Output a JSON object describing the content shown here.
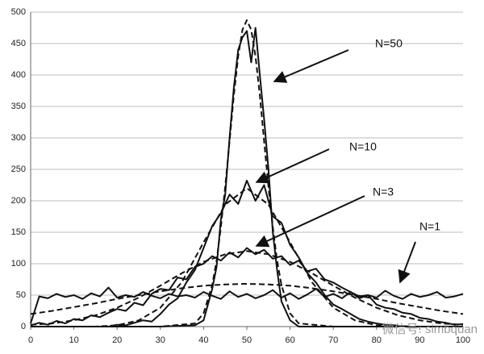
{
  "chart_data": {
    "type": "line",
    "xlim": [
      0,
      100
    ],
    "xticks": [
      0,
      10,
      20,
      30,
      40,
      50,
      60,
      70,
      80,
      90,
      100
    ],
    "ylim": [
      0,
      500
    ],
    "yticks": [
      0,
      50,
      100,
      150,
      200,
      250,
      300,
      350,
      400,
      450,
      500
    ],
    "grid": true,
    "series": [
      {
        "color": "#111111",
        "style": "solid",
        "x": [
          0,
          2,
          4,
          6,
          8,
          10,
          12,
          14,
          16,
          18,
          20,
          22,
          24,
          26,
          28,
          30,
          32,
          34,
          36,
          38,
          40,
          42,
          44,
          46,
          48,
          50,
          52,
          54,
          56,
          58,
          60,
          62,
          64,
          66,
          68,
          70,
          72,
          74,
          76,
          78,
          80,
          82,
          84,
          86,
          88,
          90,
          92,
          94,
          96,
          98,
          100
        ],
        "values": [
          5,
          48,
          45,
          52,
          47,
          50,
          44,
          53,
          48,
          62,
          46,
          50,
          47,
          55,
          49,
          45,
          52,
          48,
          50,
          46,
          55,
          49,
          44,
          56,
          47,
          52,
          45,
          50,
          58,
          46,
          53,
          44,
          51,
          60,
          47,
          52,
          45,
          55,
          48,
          50,
          46,
          57,
          49,
          44,
          52,
          47,
          50,
          55,
          46,
          48,
          52
        ]
      },
      {
        "color": "#111111",
        "style": "dashed",
        "x": [
          0,
          5,
          10,
          15,
          20,
          25,
          30,
          35,
          40,
          45,
          50,
          55,
          60,
          65,
          70,
          75,
          80,
          85,
          90,
          95,
          100
        ],
        "values": [
          20,
          25,
          31,
          37,
          44,
          50,
          56,
          61,
          65,
          67,
          68,
          67,
          65,
          61,
          56,
          50,
          44,
          37,
          31,
          25,
          20
        ]
      },
      {
        "color": "#111111",
        "style": "solid",
        "x": [
          0,
          2,
          4,
          6,
          8,
          10,
          12,
          14,
          16,
          18,
          20,
          22,
          24,
          26,
          28,
          30,
          32,
          34,
          36,
          38,
          40,
          42,
          44,
          46,
          48,
          50,
          52,
          54,
          56,
          58,
          60,
          62,
          64,
          66,
          68,
          70,
          72,
          74,
          76,
          78,
          80,
          82,
          84,
          86,
          88,
          90,
          92,
          94,
          96,
          98,
          100
        ],
        "values": [
          2,
          6,
          3,
          9,
          5,
          12,
          10,
          18,
          15,
          22,
          28,
          25,
          38,
          34,
          52,
          60,
          58,
          78,
          75,
          95,
          100,
          112,
          105,
          118,
          110,
          125,
          115,
          122,
          108,
          112,
          98,
          105,
          88,
          92,
          75,
          70,
          62,
          55,
          45,
          50,
          35,
          30,
          28,
          22,
          20,
          14,
          12,
          8,
          6,
          3,
          4
        ]
      },
      {
        "color": "#111111",
        "style": "dashed",
        "x": [
          0,
          5,
          10,
          15,
          20,
          25,
          30,
          35,
          40,
          45,
          50,
          55,
          60,
          65,
          70,
          75,
          80,
          85,
          90,
          95,
          100
        ],
        "values": [
          3,
          5,
          10,
          18,
          30,
          46,
          65,
          85,
          103,
          115,
          120,
          115,
          103,
          85,
          65,
          46,
          30,
          18,
          10,
          5,
          3
        ]
      },
      {
        "color": "#111111",
        "style": "solid",
        "x": [
          0,
          2,
          4,
          6,
          8,
          10,
          12,
          14,
          16,
          18,
          20,
          22,
          24,
          26,
          28,
          30,
          32,
          34,
          36,
          38,
          40,
          42,
          44,
          46,
          48,
          50,
          52,
          54,
          56,
          58,
          60,
          62,
          64,
          66,
          68,
          70,
          72,
          74,
          76,
          78,
          80,
          82,
          84,
          86,
          88,
          90,
          92,
          94,
          96,
          98,
          100
        ],
        "values": [
          0,
          0,
          0,
          0,
          0,
          0,
          0,
          0,
          0,
          0,
          3,
          2,
          6,
          10,
          8,
          20,
          35,
          45,
          70,
          90,
          125,
          160,
          180,
          210,
          195,
          232,
          200,
          225,
          175,
          165,
          130,
          110,
          85,
          70,
          50,
          35,
          28,
          20,
          12,
          8,
          5,
          3,
          2,
          1,
          0,
          0,
          0,
          0,
          0,
          0,
          0
        ]
      },
      {
        "color": "#111111",
        "style": "dashed",
        "x": [
          0,
          5,
          10,
          15,
          20,
          25,
          30,
          35,
          40,
          45,
          50,
          55,
          60,
          65,
          70,
          75,
          80,
          85,
          90,
          95,
          100
        ],
        "values": [
          0,
          0,
          0,
          0,
          2,
          10,
          30,
          71,
          134,
          194,
          220,
          194,
          134,
          71,
          30,
          10,
          2,
          0,
          0,
          0,
          0
        ]
      },
      {
        "color": "#111111",
        "style": "solid",
        "x": [
          0,
          30,
          38,
          40,
          42,
          43,
          44,
          45,
          46,
          47,
          48,
          49,
          50,
          51,
          52,
          53,
          54,
          55,
          56,
          57,
          58,
          60,
          62,
          70,
          100
        ],
        "values": [
          0,
          0,
          2,
          10,
          60,
          95,
          170,
          210,
          300,
          380,
          440,
          460,
          470,
          420,
          475,
          400,
          330,
          250,
          150,
          90,
          40,
          10,
          0,
          0,
          0
        ]
      },
      {
        "color": "#111111",
        "style": "dashed",
        "x": [
          0,
          30,
          38,
          40,
          42,
          43,
          44,
          45,
          46,
          47,
          48,
          49,
          50,
          51,
          52,
          53,
          54,
          55,
          56,
          57,
          58,
          60,
          62,
          70,
          100
        ],
        "values": [
          0,
          0,
          5,
          21,
          66,
          105,
          158,
          223,
          295,
          368,
          430,
          472,
          487,
          472,
          430,
          368,
          295,
          223,
          158,
          105,
          66,
          21,
          5,
          0,
          0
        ]
      }
    ],
    "annotations": [
      "N=50",
      "N=10",
      "N=3",
      "N=1"
    ],
    "watermark": "微信号: simbquan"
  }
}
